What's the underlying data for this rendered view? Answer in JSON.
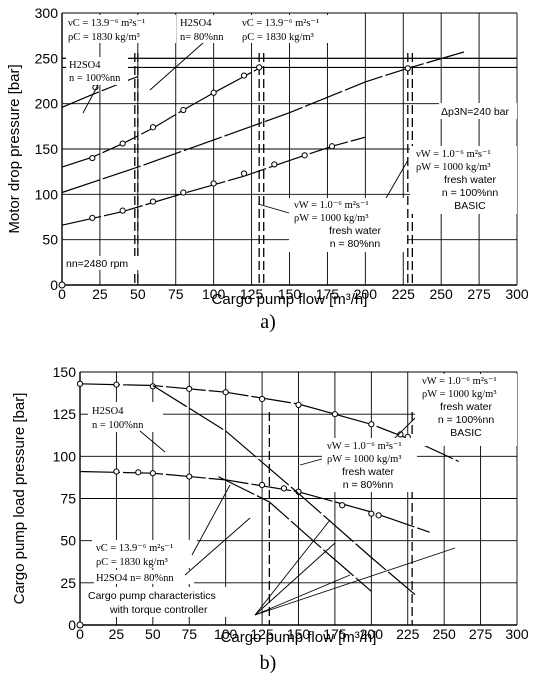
{
  "chart_data": [
    {
      "id": "a",
      "type": "line",
      "panel_label": "a)",
      "xlabel": "Cargo pump flow [m³/h]",
      "ylabel": "Motor drop pressure [bar]",
      "xlim": [
        0,
        300
      ],
      "ylim": [
        0,
        300
      ],
      "xticks": [
        0,
        25,
        50,
        75,
        100,
        125,
        150,
        175,
        200,
        225,
        250,
        275,
        300
      ],
      "yticks": [
        0,
        50,
        100,
        150,
        200,
        250,
        300
      ],
      "grid": true,
      "series": [
        {
          "key": "acid100",
          "x": [
            0,
            20,
            35,
            50
          ],
          "y": [
            196,
            210,
            220,
            230
          ],
          "markers": [
            [
              22,
              218
            ]
          ]
        },
        {
          "key": "acid80",
          "x": [
            0,
            20,
            40,
            60,
            80,
            100,
            120,
            132
          ],
          "y": [
            130,
            141,
            156,
            173,
            193,
            212,
            230,
            241
          ],
          "markers": [
            [
              20,
              140
            ],
            [
              40,
              156
            ],
            [
              60,
              174
            ],
            [
              80,
              193
            ],
            [
              100,
              212
            ],
            [
              120,
              231
            ],
            [
              130,
              240
            ]
          ]
        },
        {
          "key": "fresh100",
          "x": [
            0,
            50,
            100,
            150,
            200,
            228,
            265
          ],
          "y": [
            102,
            130,
            160,
            190,
            224,
            239,
            257
          ],
          "markers": [
            [
              228,
              239
            ]
          ]
        },
        {
          "key": "fresh80",
          "x": [
            0,
            40,
            80,
            120,
            160,
            180,
            200
          ],
          "y": [
            66,
            81,
            101,
            120,
            143,
            154,
            163
          ],
          "markers": [
            [
              20,
              74
            ],
            [
              40,
              82
            ],
            [
              60,
              92
            ],
            [
              80,
              102
            ],
            [
              100,
              112
            ],
            [
              120,
              123
            ],
            [
              140,
              133
            ],
            [
              160,
              143
            ],
            [
              178,
              153
            ]
          ]
        }
      ],
      "hlines": [
        240,
        250
      ],
      "vlines": [
        48,
        50,
        130,
        133,
        228,
        231
      ],
      "annotations": {
        "nu_c": "νC = 13.9⁻⁶ m²s⁻¹",
        "rho_c": "ρC = 1830 kg/m³",
        "h2so4_left": "H2SO4",
        "n_100": "n = 100%nn",
        "h2so4_mid": "H2SO4",
        "n_80": "n= 80%nn",
        "nu_c2": "νC = 13.9⁻⁶ m²s⁻¹",
        "rho_c2": "ρC = 1830 kg/m³",
        "dp": "Δp3N=240 bar",
        "nu_w1": "νW = 1.0⁻⁶ m²s⁻¹",
        "rho_w1": "ρW = 1000 kg/m³",
        "fresh1": "fresh water",
        "n1": "n = 100%nn",
        "basic": "BASIC",
        "nu_w2": "νW = 1.0⁻⁶ m²s⁻¹",
        "rho_w2": "ρW = 1000 kg/m³",
        "fresh2": "fresh water",
        "n2": "n = 80%nn",
        "rpm": "nn=2480 rpm"
      }
    },
    {
      "id": "b",
      "type": "line",
      "panel_label": "b)",
      "xlabel": "Cargo pump flow [m³/h]",
      "ylabel": "Cargo pump load pressure [bar]",
      "xlim": [
        0,
        300
      ],
      "ylim": [
        0,
        150
      ],
      "xticks": [
        0,
        25,
        50,
        75,
        100,
        125,
        150,
        175,
        200,
        225,
        250,
        275,
        300
      ],
      "yticks": [
        0,
        25,
        50,
        75,
        100,
        125,
        150
      ],
      "grid": true,
      "series": [
        {
          "key": "fresh100",
          "x": [
            0,
            50,
            100,
            150,
            200,
            230,
            260
          ],
          "y": [
            143,
            142,
            138,
            131,
            119,
            109,
            97
          ],
          "markers": [
            [
              0,
              143
            ],
            [
              25,
              142.5
            ],
            [
              50,
              141.5
            ],
            [
              75,
              140
            ],
            [
              100,
              138
            ],
            [
              125,
              134
            ],
            [
              150,
              130.5
            ],
            [
              175,
              125
            ],
            [
              200,
              119
            ],
            [
              220,
              113
            ],
            [
              225,
              111.5
            ],
            [
              230,
              109
            ]
          ]
        },
        {
          "key": "fresh80",
          "x": [
            0,
            50,
            100,
            150,
            200,
            240
          ],
          "y": [
            91,
            90,
            86,
            79,
            67,
            55
          ],
          "markers": [
            [
              25,
              91
            ],
            [
              40,
              90.5
            ],
            [
              50,
              90
            ],
            [
              75,
              88
            ],
            [
              125,
              83
            ],
            [
              140,
              81
            ],
            [
              150,
              79
            ],
            [
              180,
              71
            ],
            [
              200,
              66
            ],
            [
              205,
              65
            ]
          ]
        },
        {
          "key": "acid100",
          "x": [
            50,
            100,
            150,
            200,
            230
          ],
          "y": [
            142,
            115,
            78,
            40,
            18
          ]
        },
        {
          "key": "acid80",
          "x": [
            95,
            130,
            160,
            200
          ],
          "y": [
            88,
            73,
            50,
            20
          ]
        }
      ],
      "hlines": [],
      "vlines": [
        130,
        228
      ],
      "annotations": {
        "h2so4": "H2SO4",
        "n_100": "n = 100%nn",
        "nu_c": "νC = 13.9⁻⁶ m²s⁻¹",
        "rho_c": "ρC = 1830 kg/m³",
        "h2so4_80": "H2SO4  n= 80%nn",
        "char1": "Cargo pump characteristics",
        "char2": "with torque controller",
        "nu_w1": "νW = 1.0⁻⁶ m²s⁻¹",
        "rho_w1": "ρW = 1000 kg/m³",
        "fresh1": "fresh water",
        "n1": "n = 100%nn",
        "basic": "BASIC",
        "nu_w2": "νW = 1.0⁻⁶ m²s⁻¹",
        "rho_w2": "ρW = 1000 kg/m³",
        "fresh2": "fresh water",
        "n2": "n = 80%nn"
      }
    }
  ]
}
